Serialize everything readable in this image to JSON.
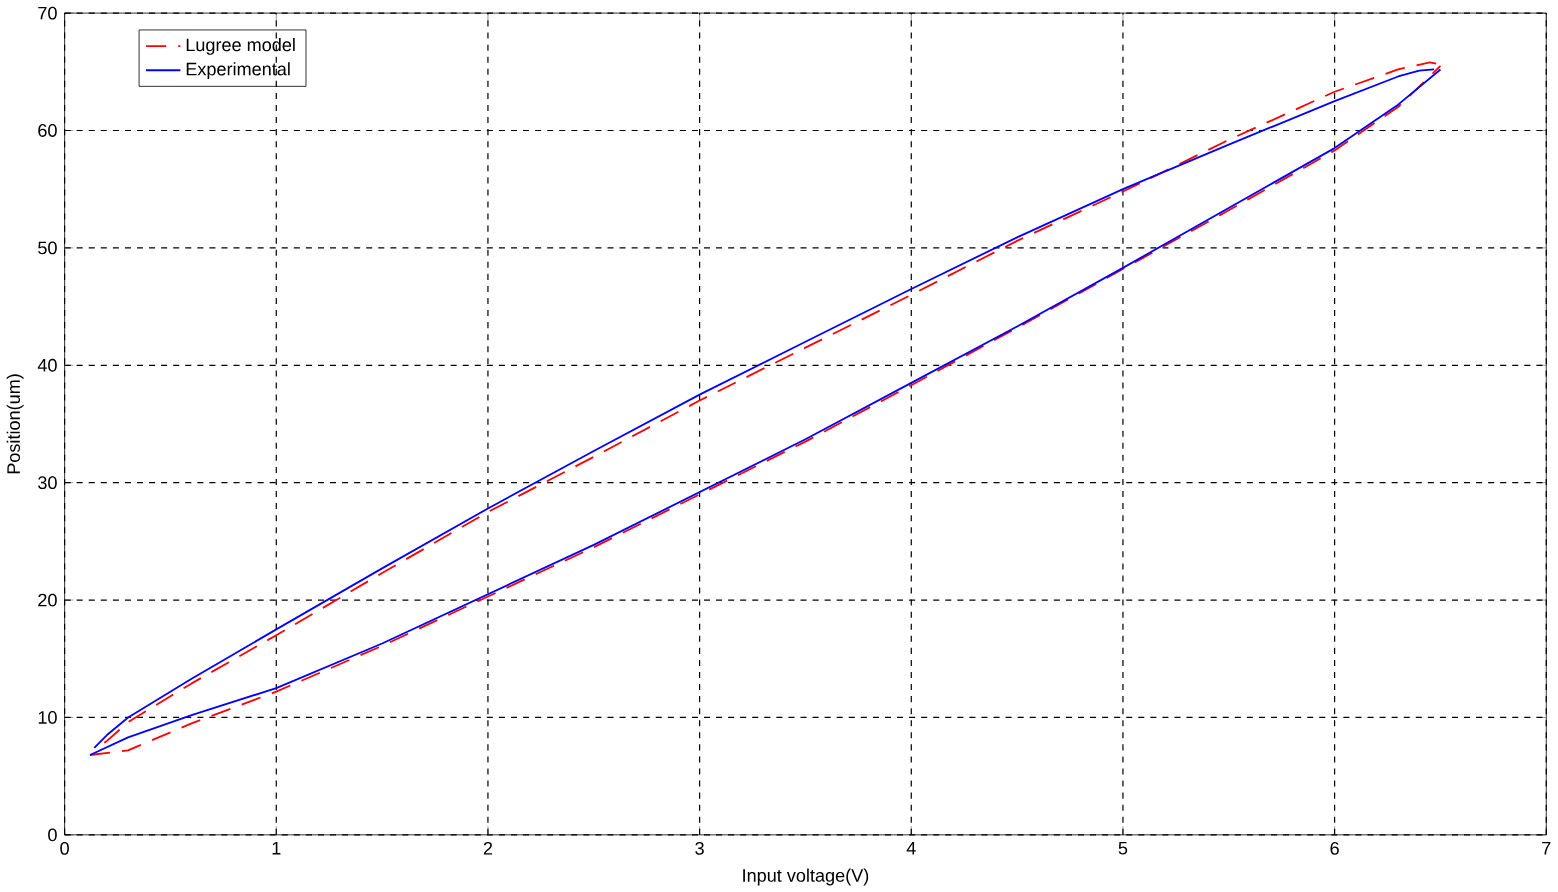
{
  "chart_data": {
    "type": "line",
    "xlabel": "Input voltage(V)",
    "ylabel": "Position(um)",
    "xlim": [
      0,
      7
    ],
    "ylim": [
      0,
      70
    ],
    "xticks": [
      0,
      1,
      2,
      3,
      4,
      5,
      6,
      7
    ],
    "yticks": [
      0,
      10,
      20,
      30,
      40,
      50,
      60,
      70
    ],
    "grid": true,
    "legend": "top left",
    "series": [
      {
        "name": "Lugree model",
        "color": "#ff0000",
        "line_style": "dashed",
        "x": [
          0.12,
          0.3,
          0.6,
          1,
          1.5,
          2,
          2.5,
          3,
          3.5,
          4,
          4.5,
          5,
          5.5,
          6,
          6.3,
          6.5
        ],
        "values": [
          6.8,
          7.2,
          9.5,
          12.2,
          16.1,
          20.3,
          24.5,
          29,
          33.5,
          38.3,
          43.2,
          48.2,
          53.2,
          58.3,
          62,
          65.5
        ]
      },
      {
        "name": "Experimental",
        "color": "#0000ff",
        "line_style": "solid",
        "x": [
          0.12,
          0.3,
          0.6,
          1,
          1.5,
          2,
          2.5,
          3,
          3.5,
          4,
          4.5,
          5,
          5.5,
          6,
          6.3,
          6.5
        ],
        "values": [
          6.8,
          8.3,
          10.2,
          12.5,
          16.3,
          20.5,
          24.7,
          29.2,
          33.7,
          38.5,
          43.3,
          48.3,
          53.4,
          58.5,
          62.2,
          65.2
        ]
      },
      {
        "color": "#ff0000",
        "line_style": "dashed",
        "x": [
          6.48,
          6.45,
          6.3,
          6,
          5.5,
          5,
          4.5,
          4,
          3.5,
          3,
          2.5,
          2,
          1.5,
          1,
          0.6,
          0.3,
          0.2,
          0.14
        ],
        "values": [
          65.7,
          65.8,
          65.2,
          63.3,
          59.2,
          54.8,
          50.6,
          46,
          41.5,
          37,
          32.2,
          27.5,
          22.3,
          17,
          12.9,
          9.6,
          8,
          7.3
        ]
      },
      {
        "color": "#0000ff",
        "line_style": "solid",
        "x": [
          6.47,
          6.4,
          6.3,
          6,
          5.5,
          5,
          4.5,
          4,
          3.5,
          3,
          2.5,
          2,
          1.5,
          1,
          0.6,
          0.3,
          0.2,
          0.14
        ],
        "values": [
          65.2,
          65.1,
          64.6,
          62.5,
          58.8,
          55,
          50.9,
          46.5,
          42,
          37.5,
          32.7,
          27.8,
          22.7,
          17.5,
          13.3,
          10,
          8.5,
          7.4
        ]
      }
    ]
  }
}
